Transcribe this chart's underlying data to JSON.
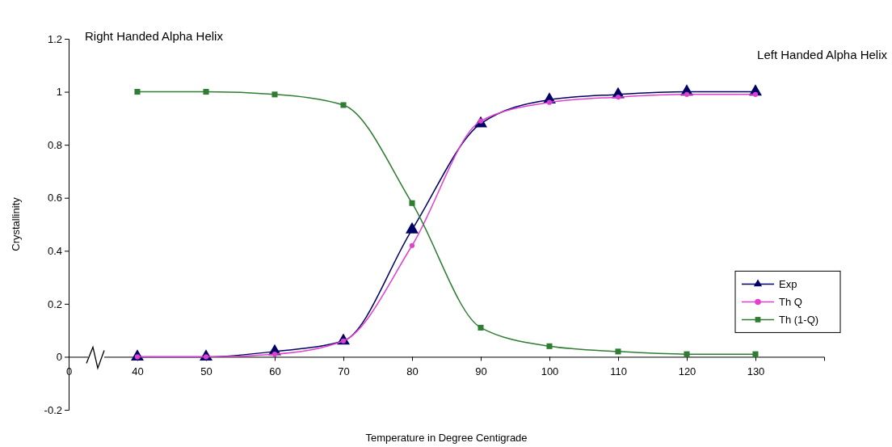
{
  "chart_data": {
    "type": "line",
    "xlabel": "Temperature in Degree Centigrade",
    "ylabel": "Crystallinity",
    "categories": [
      "0",
      "40",
      "50",
      "60",
      "70",
      "80",
      "90",
      "100",
      "110",
      "120",
      "130"
    ],
    "ylim": [
      -0.2,
      1.2
    ],
    "yticks": [
      -0.2,
      0,
      0.2,
      0.4,
      0.6,
      0.8,
      1,
      1.2
    ],
    "series": [
      {
        "name": "Exp",
        "color": "#000066",
        "marker": "triangle",
        "values": [
          null,
          0,
          0,
          0.02,
          0.06,
          0.48,
          0.88,
          0.97,
          0.99,
          1.0,
          1.0
        ]
      },
      {
        "name": "Th Q",
        "color": "#e040d0",
        "marker": "circle",
        "values": [
          null,
          0,
          0,
          0.01,
          0.06,
          0.42,
          0.89,
          0.96,
          0.98,
          0.99,
          0.99
        ]
      },
      {
        "name": "Th (1-Q)",
        "color": "#2e7d32",
        "marker": "square",
        "values": [
          null,
          1,
          1,
          0.99,
          0.95,
          0.58,
          0.11,
          0.04,
          0.02,
          0.01,
          0.01
        ]
      }
    ],
    "legend": "bottom right",
    "grid": false,
    "annotations": [
      "Right Handed Alpha Helix",
      "Left Handed Alpha Helix"
    ]
  }
}
